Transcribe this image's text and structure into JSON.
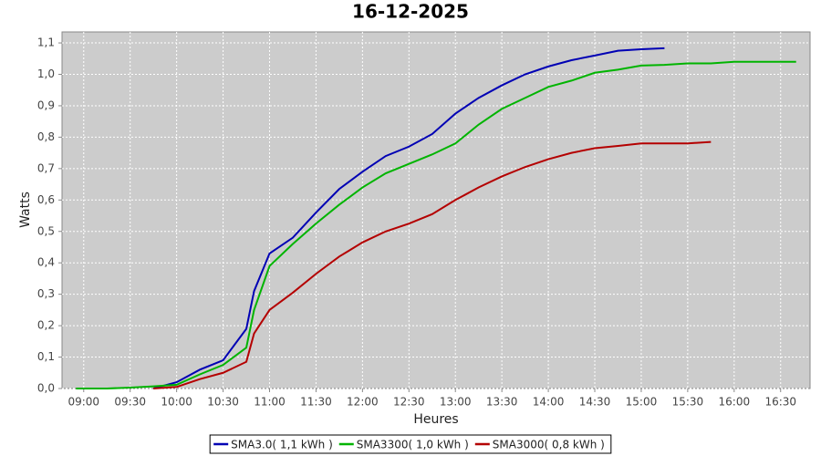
{
  "chart_data": {
    "type": "line",
    "title": "16-12-2025",
    "x_label": "Heures",
    "y_label": "Watts",
    "x": [
      "08:55",
      "09:15",
      "09:30",
      "09:45",
      "10:00",
      "10:15",
      "10:30",
      "10:45",
      "10:50",
      "11:00",
      "11:15",
      "11:30",
      "11:45",
      "12:00",
      "12:15",
      "12:30",
      "12:45",
      "13:00",
      "13:15",
      "13:30",
      "13:45",
      "14:00",
      "14:15",
      "14:30",
      "14:45",
      "15:00",
      "15:15",
      "15:30",
      "15:45",
      "16:00",
      "16:15",
      "16:30",
      "16:40"
    ],
    "series": [
      {
        "name": "SMA3.0( 1,1 kWh )",
        "color": "#0000b4",
        "values": [
          null,
          null,
          null,
          0,
          0.02,
          0.06,
          0.09,
          0.19,
          0.31,
          0.43,
          0.48,
          0.56,
          0.635,
          0.69,
          0.74,
          0.77,
          0.81,
          0.875,
          0.925,
          0.965,
          1.0,
          1.025,
          1.045,
          1.06,
          1.075,
          1.08,
          1.083,
          null,
          null,
          null,
          null,
          null,
          null
        ]
      },
      {
        "name": "SMA3300( 1,0 kWh )",
        "color": "#00b400",
        "values": [
          0,
          0,
          0.003,
          0.007,
          0.012,
          0.045,
          0.075,
          0.13,
          0.25,
          0.39,
          0.46,
          0.525,
          0.585,
          0.64,
          0.685,
          0.715,
          0.745,
          0.78,
          0.84,
          0.89,
          0.925,
          0.96,
          0.98,
          1.005,
          1.015,
          1.028,
          1.03,
          1.035,
          1.035,
          1.04,
          1.04,
          1.04,
          1.04
        ]
      },
      {
        "name": "SMA3000( 0,8 kWh )",
        "color": "#b40000",
        "values": [
          null,
          null,
          null,
          0,
          0.005,
          0.03,
          0.05,
          0.085,
          0.175,
          0.25,
          0.305,
          0.365,
          0.42,
          0.465,
          0.5,
          0.525,
          0.555,
          0.6,
          0.64,
          0.675,
          0.705,
          0.73,
          0.75,
          0.765,
          0.772,
          0.78,
          0.78,
          0.78,
          0.785,
          null,
          null,
          null,
          null
        ]
      }
    ],
    "xlim": [
      "08:46",
      "16:49"
    ],
    "xticks": [
      "09:00",
      "09:30",
      "10:00",
      "10:30",
      "11:00",
      "11:30",
      "12:00",
      "12:30",
      "13:00",
      "13:30",
      "14:00",
      "14:30",
      "15:00",
      "15:30",
      "16:00",
      "16:30"
    ],
    "ylim": [
      0,
      1.135
    ],
    "yticks": [
      {
        "value": 0,
        "label": "0,0"
      },
      {
        "value": 0.1,
        "label": "0,1"
      },
      {
        "value": 0.2,
        "label": "0,2"
      },
      {
        "value": 0.3,
        "label": "0,3"
      },
      {
        "value": 0.4,
        "label": "0,4"
      },
      {
        "value": 0.5,
        "label": "0,5"
      },
      {
        "value": 0.6,
        "label": "0,6"
      },
      {
        "value": 0.7,
        "label": "0,7"
      },
      {
        "value": 0.8,
        "label": "0,8"
      },
      {
        "value": 0.9,
        "label": "0,9"
      },
      {
        "value": 1.0,
        "label": "1,0"
      },
      {
        "value": 1.1,
        "label": "1,1"
      }
    ],
    "grid": true,
    "legend": "bottom",
    "plot_background": "#cccccc"
  }
}
